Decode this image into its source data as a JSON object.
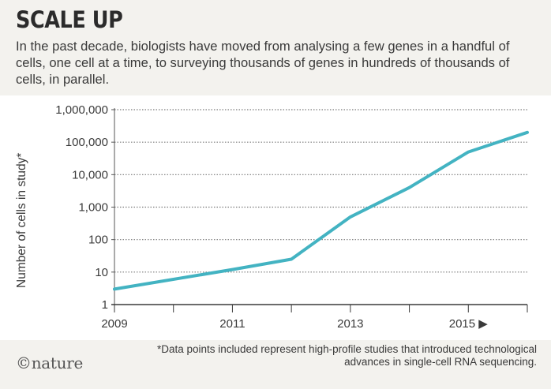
{
  "header": {
    "title": "SCALE UP",
    "subtitle": "In the past decade, biologists have moved from analysing a few genes in a handful of cells, one cell at a time, to surveying thousands of genes in hundreds of thousands of cells, in parallel."
  },
  "footer": {
    "footnote": "*Data points included represent high-profile studies that introduced technological advances in single-cell RNA sequencing.",
    "logo": "©nature"
  },
  "chart_data": {
    "type": "line",
    "title": "",
    "xlabel": "",
    "ylabel": "Number of cells in study*",
    "yscale": "log",
    "xlim": [
      2009,
      2016
    ],
    "ylim": [
      1,
      1000000
    ],
    "grid": "horizontal dotted",
    "y_tick_labels": [
      "1",
      "10",
      "100",
      "1,000",
      "10,000",
      "100,000",
      "1,000,000"
    ],
    "y_tick_values": [
      1,
      10,
      100,
      1000,
      10000,
      100000,
      1000000
    ],
    "x_tick_labels": [
      "2009",
      "2011",
      "2013",
      "2015 ▶"
    ],
    "x_tick_values": [
      2009,
      2011,
      2013,
      2015
    ],
    "series": [
      {
        "x": [
          2009,
          2011,
          2012,
          2013,
          2014,
          2015,
          2016
        ],
        "values": [
          3,
          12,
          25,
          500,
          4000,
          50000,
          200000
        ]
      }
    ],
    "colors": {
      "line": "#43b3c2",
      "grid": "#7a7a7a",
      "axis": "#555555"
    }
  }
}
